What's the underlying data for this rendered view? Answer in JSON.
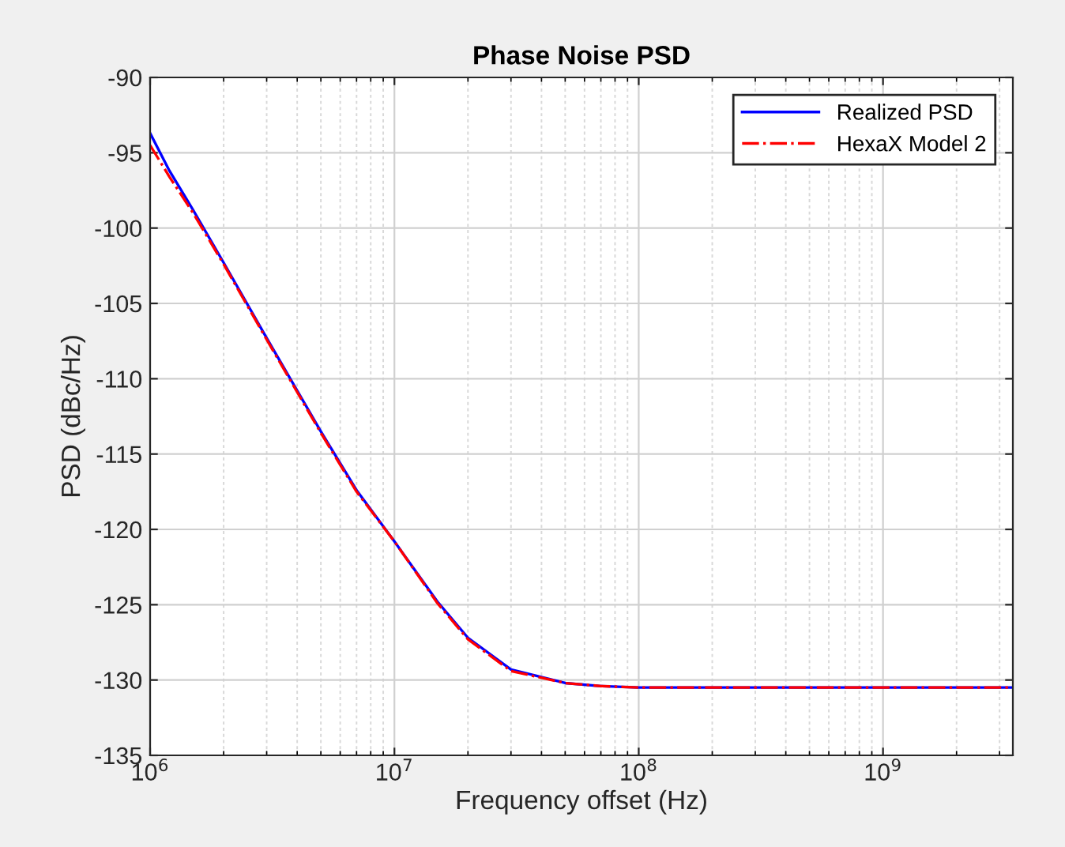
{
  "chart_data": {
    "type": "line",
    "title": "Phase Noise PSD",
    "xlabel": "Frequency offset (Hz)",
    "ylabel": "PSD (dBc/Hz)",
    "log": "x",
    "grid": true,
    "legend": "top right",
    "xlim": [
      1000000,
      3400000000
    ],
    "xticks": [
      {
        "value": 1000000,
        "label": "10$^{6}$"
      },
      {
        "value": 10000000,
        "label": "10$^{7}$"
      },
      {
        "value": 100000000,
        "label": "10$^{8}$"
      },
      {
        "value": 1000000000,
        "label": "10$^{9}$"
      }
    ],
    "ylim": [
      -135,
      -90
    ],
    "yticks": [
      -135,
      -130,
      -125,
      -120,
      -115,
      -110,
      -105,
      -100,
      -95,
      -90
    ],
    "x": [
      1000000,
      1200000,
      1500000,
      2000000,
      3000000,
      5000000,
      7000000,
      10000000,
      15000000,
      20000000,
      30000000,
      50000000,
      70000000,
      100000000,
      1000000000,
      3400000000
    ],
    "series": [
      {
        "name": "Realized PSD",
        "color": "#0000ff",
        "line_style": "solid",
        "values": [
          -93.7,
          -96.2,
          -98.8,
          -102.3,
          -107.3,
          -113.5,
          -117.4,
          -120.8,
          -124.8,
          -127.2,
          -129.3,
          -130.2,
          -130.4,
          -130.5,
          -130.5,
          -130.5
        ]
      },
      {
        "name": "HexaX Model 2",
        "color": "#ff0000",
        "line_style": "dashdot",
        "values": [
          -94.5,
          -96.6,
          -99.0,
          -102.4,
          -107.4,
          -113.6,
          -117.5,
          -120.8,
          -124.9,
          -127.3,
          -129.4,
          -130.2,
          -130.4,
          -130.5,
          -130.5,
          -130.5
        ]
      }
    ]
  }
}
